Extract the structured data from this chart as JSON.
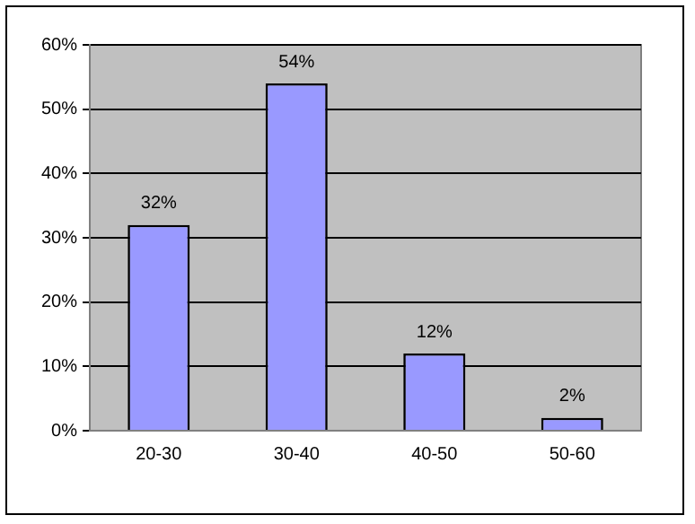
{
  "chart_data": {
    "type": "bar",
    "categories": [
      "20-30",
      "30-40",
      "40-50",
      "50-60"
    ],
    "values": [
      32,
      54,
      12,
      2
    ],
    "color": "#9999ff",
    "value_labels": [
      "32%",
      "54%",
      "12%",
      "2%"
    ],
    "ylim": [
      0,
      60
    ],
    "yticks": [
      {
        "value": 0,
        "label": "0%"
      },
      {
        "value": 10,
        "label": "10%"
      },
      {
        "value": 20,
        "label": "20%"
      },
      {
        "value": 30,
        "label": "30%"
      },
      {
        "value": 40,
        "label": "40%"
      },
      {
        "value": 50,
        "label": "50%"
      },
      {
        "value": 60,
        "label": "60%"
      }
    ],
    "grid": "y",
    "legend": false
  }
}
